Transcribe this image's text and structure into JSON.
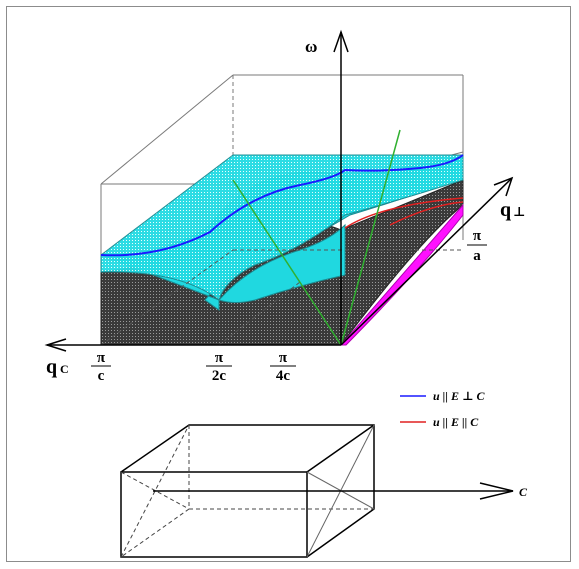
{
  "axes": {
    "omega": "ω",
    "q_perp": "q⊥",
    "q_perp_main": "q",
    "q_perp_sub": "⊥",
    "q_c_main": "q",
    "q_c_sub": "C"
  },
  "ticks": {
    "pi_over_c": {
      "num": "π",
      "den": "c"
    },
    "pi_over_2c": {
      "num": "π",
      "den": "2c"
    },
    "pi_over_4c": {
      "num": "π",
      "den": "4c"
    },
    "pi_over_a": {
      "num": "π",
      "den": "a"
    }
  },
  "legend": {
    "items": [
      {
        "text": "u || E ⊥ C",
        "color": "#1a1aff"
      },
      {
        "text": "u || E || C",
        "color": "#e02020"
      }
    ]
  },
  "crystal": {
    "axis_label": "C"
  },
  "colors": {
    "cyan_surface": "#20d8e0",
    "gray_surface": "#555555",
    "magenta_surface": "#ff10ff",
    "green_line": "#30b030",
    "blue_curve": "#1a1aff",
    "red_curve": "#e02020"
  }
}
